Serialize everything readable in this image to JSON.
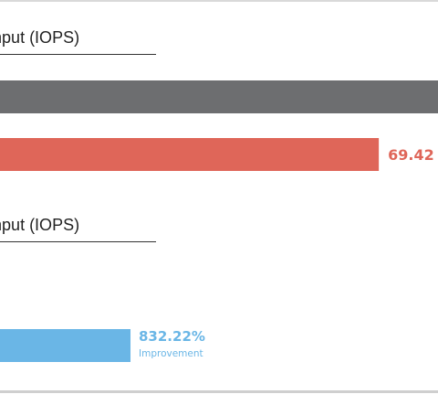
{
  "chart_data": [
    {
      "type": "bar",
      "title": "oughput (IOPS)",
      "orientation": "horizontal",
      "series": [
        {
          "values": [
            100
          ],
          "color": "#6d6e70"
        },
        {
          "values": [
            69.42
          ],
          "color": "#df6659",
          "data_label": "69.42"
        }
      ]
    },
    {
      "type": "bar",
      "title": "oughput (IOPS)",
      "orientation": "horizontal",
      "series": [
        {
          "values": [
            832.22
          ],
          "color": "#6ab6e6",
          "data_label": "832.22%"
        }
      ],
      "annotation": "Improvement"
    }
  ],
  "colors": {
    "gray_bar": "#6d6e70",
    "red_bar": "#df6659",
    "blue_bar": "#6ab6e6"
  }
}
